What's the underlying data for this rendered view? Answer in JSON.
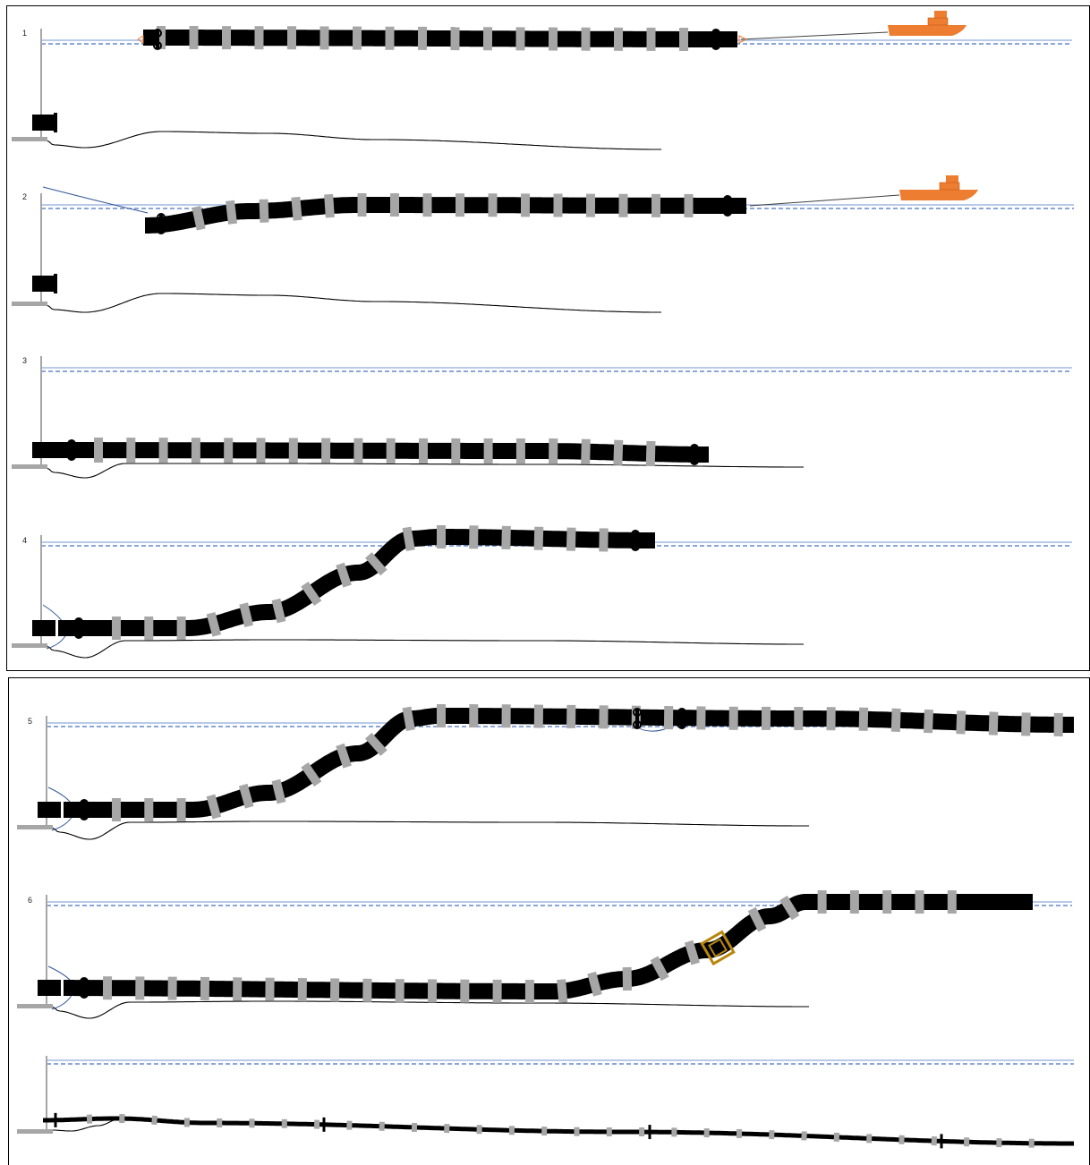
{
  "colors": {
    "pipe": "#000000",
    "float": "#a6a6a6",
    "water_solid": "#8eaadb",
    "water_dashed": "#4472c4",
    "seabed": "#000000",
    "structure": "#a6a6a6",
    "tug": "#ed7d31",
    "cable": "#2f5597",
    "tow_line": "#404040",
    "anchor_frame": "#b8860b"
  },
  "icons": {
    "tug": "tug-boat-icon",
    "flange": "pipe-flange-icon",
    "float": "buoyancy-float-icon",
    "anchor": "concrete-anchor-icon"
  },
  "steps": [
    {
      "id": "1",
      "label": "1",
      "description": ""
    },
    {
      "id": "2",
      "label": "2",
      "description": ""
    },
    {
      "id": "3",
      "label": "3",
      "description": ""
    },
    {
      "id": "4",
      "label": "4",
      "description": ""
    },
    {
      "id": "5",
      "label": "5",
      "description": ""
    },
    {
      "id": "6",
      "label": "6",
      "description": ""
    },
    {
      "id": "7",
      "label": "",
      "description": ""
    }
  ]
}
